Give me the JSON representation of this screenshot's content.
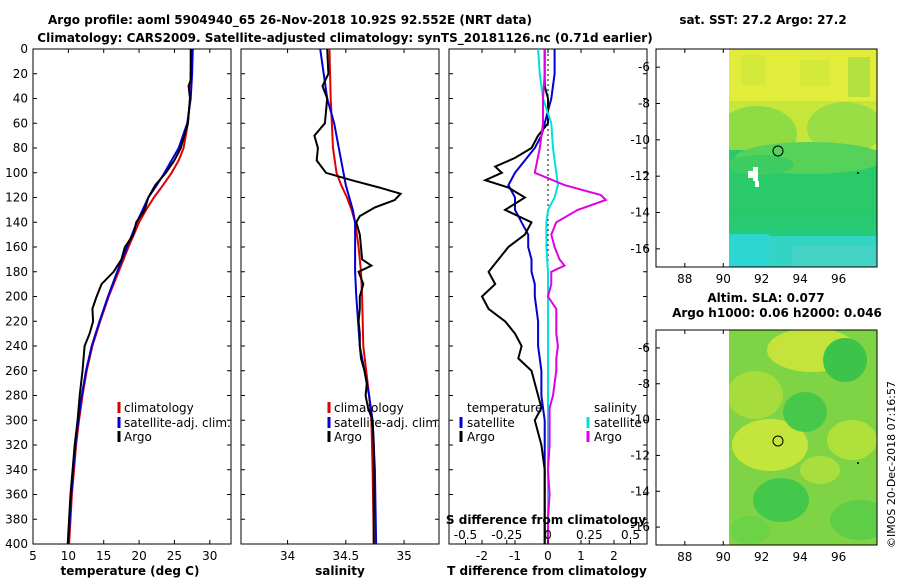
{
  "title": {
    "line1": "Argo profile: aoml 5904940_65 26-Nov-2018 10.92S 92.552E (NRT data)",
    "line2": "Climatology: CARS2009. Satellite-adjusted climatology: synTS_20181126.nc (0.71d earlier)"
  },
  "watermark": "©IMOS 20-Dec-2018 07:16:57",
  "colors": {
    "climatology": "#e00000",
    "satellite": "#0000d0",
    "argo": "#000000",
    "sal_sat": "#00e0e0",
    "sal_argo": "#e000e0"
  },
  "chart_data": [
    {
      "id": "temperature",
      "type": "line",
      "xlabel": "temperature (deg C)",
      "xlim": [
        5,
        33
      ],
      "xticks": [
        5,
        10,
        15,
        20,
        25,
        30
      ],
      "ylim": [
        0,
        400
      ],
      "yticks": [
        0,
        20,
        40,
        60,
        80,
        100,
        120,
        140,
        160,
        180,
        200,
        220,
        240,
        260,
        280,
        300,
        320,
        340,
        360,
        380,
        400
      ],
      "legend": [
        "climatology",
        "satellite-adj. clim.",
        "Argo"
      ],
      "series": [
        {
          "name": "climatology",
          "color": "#e00000",
          "y": [
            0,
            20,
            40,
            60,
            80,
            90,
            100,
            110,
            120,
            130,
            140,
            160,
            180,
            200,
            220,
            240,
            260,
            280,
            300,
            320,
            340,
            360,
            380,
            400
          ],
          "x": [
            27.4,
            27.3,
            27.2,
            26.9,
            26.3,
            25.6,
            24.6,
            23.4,
            22.1,
            21.0,
            20.0,
            18.5,
            17.1,
            15.7,
            14.5,
            13.4,
            12.6,
            12.0,
            11.5,
            11.1,
            10.8,
            10.5,
            10.3,
            10.1
          ]
        },
        {
          "name": "satellite-adj. clim.",
          "color": "#0000d0",
          "y": [
            0,
            20,
            40,
            60,
            80,
            90,
            100,
            110,
            120,
            130,
            140,
            160,
            180,
            200,
            220,
            240,
            260,
            280,
            300,
            320,
            340,
            360,
            380,
            400
          ],
          "x": [
            27.6,
            27.5,
            27.3,
            26.8,
            25.6,
            24.6,
            23.6,
            22.5,
            21.3,
            20.5,
            19.7,
            18.3,
            16.9,
            15.6,
            14.4,
            13.3,
            12.5,
            11.9,
            11.4,
            11.0,
            10.7,
            10.4,
            10.2,
            10.0
          ]
        },
        {
          "name": "Argo",
          "color": "#000000",
          "y": [
            0,
            25,
            30,
            40,
            60,
            70,
            80,
            90,
            100,
            110,
            120,
            130,
            140,
            150,
            160,
            170,
            180,
            190,
            200,
            210,
            220,
            230,
            240,
            260,
            280,
            300,
            320,
            340,
            360,
            380,
            400
          ],
          "x": [
            27.3,
            27.3,
            27.0,
            27.2,
            26.9,
            26.4,
            25.9,
            25.0,
            23.8,
            22.3,
            21.3,
            20.8,
            19.6,
            19.2,
            18.0,
            17.5,
            16.4,
            14.7,
            14.0,
            13.4,
            13.5,
            13.0,
            12.3,
            12.0,
            11.6,
            11.3,
            10.9,
            10.6,
            10.3,
            10.1,
            9.9
          ]
        }
      ]
    },
    {
      "id": "salinity",
      "type": "line",
      "xlabel": "salinity",
      "xlim": [
        33.6,
        35.3
      ],
      "xticks": [
        34,
        34.5,
        35
      ],
      "ylim": [
        0,
        400
      ],
      "legend": [
        "climatology",
        "satellite-adj. clim.",
        "Argo"
      ],
      "series": [
        {
          "name": "climatology",
          "color": "#e00000",
          "y": [
            0,
            40,
            80,
            100,
            110,
            120,
            130,
            140,
            160,
            180,
            200,
            240,
            280,
            300,
            340,
            400
          ],
          "x": [
            34.36,
            34.37,
            34.39,
            34.42,
            34.46,
            34.51,
            34.55,
            34.58,
            34.61,
            34.63,
            34.64,
            34.65,
            34.7,
            34.72,
            34.73,
            34.74
          ]
        },
        {
          "name": "satellite-adj. clim.",
          "color": "#0000d0",
          "y": [
            0,
            40,
            60,
            80,
            100,
            110,
            120,
            130,
            140,
            160,
            180,
            200,
            240,
            280,
            300,
            340,
            400
          ],
          "x": [
            34.28,
            34.34,
            34.4,
            34.44,
            34.48,
            34.5,
            34.53,
            34.56,
            34.58,
            34.58,
            34.58,
            34.59,
            34.62,
            34.7,
            34.73,
            34.75,
            34.76
          ]
        },
        {
          "name": "Argo",
          "color": "#000000",
          "y": [
            0,
            20,
            30,
            40,
            60,
            70,
            80,
            90,
            100,
            106,
            112,
            117,
            122,
            128,
            135,
            140,
            150,
            160,
            170,
            175,
            180,
            190,
            200,
            210,
            220,
            230,
            240,
            250,
            260,
            270,
            280,
            290,
            300,
            320,
            340,
            360,
            380,
            400
          ],
          "x": [
            34.34,
            34.35,
            34.3,
            34.34,
            34.32,
            34.23,
            34.26,
            34.25,
            34.33,
            34.55,
            34.79,
            34.97,
            34.92,
            34.75,
            34.62,
            34.59,
            34.62,
            34.63,
            34.64,
            34.72,
            34.61,
            34.65,
            34.62,
            34.62,
            34.61,
            34.62,
            34.62,
            34.63,
            34.66,
            34.68,
            34.67,
            34.69,
            34.73,
            34.74,
            34.74,
            34.74,
            34.74,
            34.74
          ]
        }
      ]
    },
    {
      "id": "difference",
      "type": "line",
      "xlabel": "T difference from climatology",
      "xlim": [
        -3,
        3
      ],
      "xticks": [
        -2,
        -1,
        0,
        1,
        2
      ],
      "top_label": "S difference from climatology",
      "top_ticks": [
        -0.5,
        -0.25,
        0,
        0.25,
        0.5
      ],
      "ylim": [
        0,
        400
      ],
      "legend": [
        "temperature",
        "satellite",
        "Argo",
        "salinity",
        "satellite",
        "Argo"
      ],
      "series": [
        {
          "name": "temperature satellite",
          "color": "#0000d0",
          "y": [
            0,
            20,
            40,
            60,
            70,
            80,
            90,
            100,
            110,
            120,
            130,
            140,
            150,
            160,
            170,
            180,
            190,
            200,
            220,
            240,
            260,
            280,
            290,
            300,
            320,
            340,
            360,
            380,
            400
          ],
          "x": [
            0.2,
            0.2,
            0.1,
            -0.1,
            -0.2,
            -0.4,
            -0.7,
            -1.0,
            -1.2,
            -1.0,
            -1.0,
            -0.8,
            -0.6,
            -0.6,
            -0.5,
            -0.5,
            -0.4,
            -0.4,
            -0.3,
            -0.3,
            -0.2,
            -0.2,
            -0.15,
            -0.1,
            -0.1,
            -0.1,
            -0.1,
            -0.1,
            -0.1
          ]
        },
        {
          "name": "temperature Argo",
          "color": "#000000",
          "y": [
            0,
            30,
            40,
            60,
            70,
            80,
            88,
            95,
            100,
            106,
            112,
            120,
            130,
            140,
            150,
            160,
            170,
            180,
            190,
            200,
            210,
            220,
            230,
            240,
            250,
            260,
            270,
            280,
            290,
            300,
            320,
            340,
            360,
            380,
            400
          ],
          "x": [
            -0.1,
            -0.1,
            0.0,
            0.0,
            -0.3,
            -0.5,
            -1.0,
            -1.6,
            -1.4,
            -1.9,
            -1.2,
            -0.7,
            -1.3,
            -0.5,
            -0.7,
            -1.2,
            -1.5,
            -1.8,
            -1.6,
            -2.0,
            -1.8,
            -1.3,
            -1.0,
            -0.8,
            -0.9,
            -0.5,
            -0.4,
            -0.3,
            -0.2,
            -0.4,
            -0.2,
            -0.1,
            -0.1,
            -0.1,
            -0.1
          ]
        },
        {
          "name": "salinity satellite",
          "color": "#00e0e0",
          "y": [
            0,
            20,
            40,
            60,
            80,
            100,
            110,
            120,
            130,
            140,
            160,
            180,
            200,
            240,
            280,
            320,
            360,
            400
          ],
          "x": [
            -0.06,
            -0.05,
            -0.03,
            0.02,
            0.03,
            0.05,
            0.06,
            0.04,
            0.0,
            -0.01,
            -0.01,
            0.0,
            0.0,
            0.0,
            0.0,
            0.0,
            0.0,
            0.0
          ]
        },
        {
          "name": "salinity Argo",
          "color": "#e000e0",
          "y": [
            0,
            20,
            40,
            60,
            80,
            100,
            110,
            118,
            122,
            130,
            140,
            150,
            160,
            170,
            175,
            180,
            190,
            200,
            210,
            220,
            230,
            240,
            250,
            260,
            270,
            280,
            290,
            300,
            320,
            340,
            360,
            380,
            400
          ],
          "x": [
            -0.02,
            -0.02,
            -0.03,
            -0.03,
            -0.05,
            -0.08,
            0.1,
            0.32,
            0.35,
            0.18,
            0.05,
            0.02,
            0.04,
            0.07,
            0.1,
            0.02,
            0.02,
            0.0,
            0.05,
            0.05,
            0.05,
            0.06,
            0.05,
            0.05,
            0.04,
            0.03,
            0.01,
            0.01,
            0.01,
            0.0,
            0.01,
            0.0,
            0.0
          ]
        }
      ]
    },
    {
      "id": "sst_map",
      "type": "heatmap",
      "title": "sat. SST: 27.2 Argo: 27.2",
      "xlim": [
        86.5,
        98
      ],
      "ylim": [
        -17,
        -5
      ],
      "xticks": [
        88,
        90,
        92,
        94,
        96
      ],
      "yticks": [
        -6,
        -8,
        -10,
        -12,
        -14,
        -16
      ],
      "argo_position": [
        92.55,
        -10.92
      ]
    },
    {
      "id": "sla_map",
      "type": "heatmap",
      "title_line1": "Altim. SLA: 0.077",
      "title_line2": "Argo h1000: 0.06 h2000: 0.046",
      "xlim": [
        86.5,
        98
      ],
      "ylim": [
        -17,
        -5
      ],
      "xticks": [
        88,
        90,
        92,
        94,
        96
      ],
      "yticks": [
        -6,
        -8,
        -10,
        -12,
        -14,
        -16
      ],
      "argo_position": [
        92.55,
        -10.92
      ]
    }
  ]
}
